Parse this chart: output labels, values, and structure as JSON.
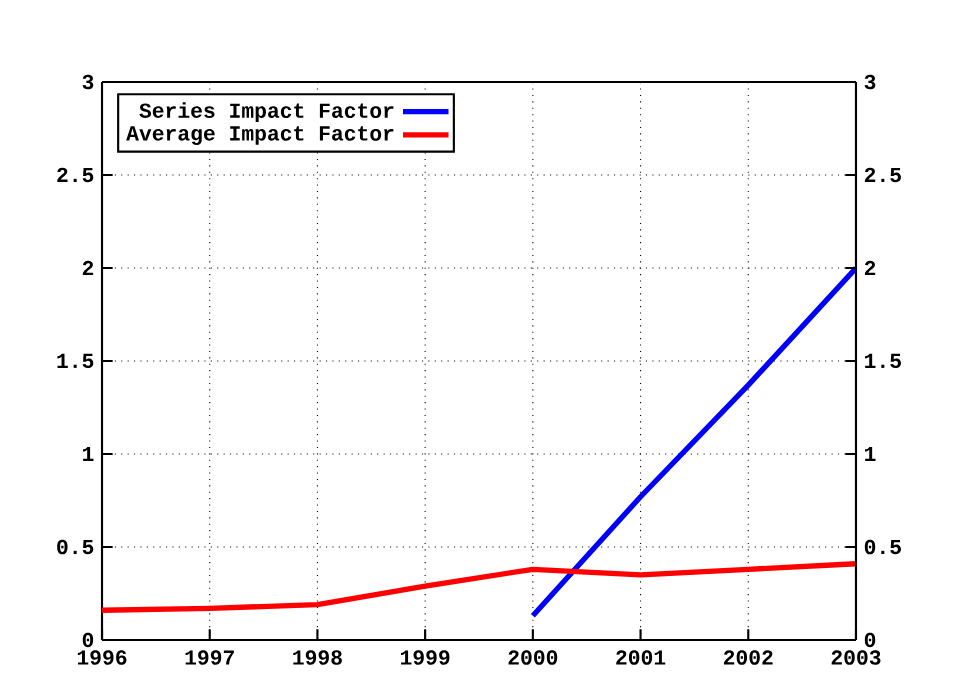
{
  "chart_data": {
    "type": "line",
    "x": [
      1996,
      1997,
      1998,
      1999,
      2000,
      2001,
      2002,
      2003
    ],
    "series": [
      {
        "name": "Series Impact Factor",
        "color": "#0000ff",
        "values": [
          null,
          null,
          null,
          null,
          0.13,
          0.77,
          1.37,
          2.0
        ]
      },
      {
        "name": "Average Impact Factor",
        "color": "#ff0000",
        "values": [
          0.16,
          0.17,
          0.19,
          0.29,
          0.38,
          0.35,
          0.38,
          0.41
        ]
      }
    ],
    "xlim": [
      1996,
      2003
    ],
    "xticks": [
      1996,
      1997,
      1998,
      1999,
      2000,
      2001,
      2002,
      2003
    ],
    "ylim": [
      0,
      3
    ],
    "yticks": [
      0,
      0.5,
      1,
      1.5,
      2,
      2.5,
      3
    ],
    "y2lim": [
      0,
      3
    ],
    "y2ticks": [
      0,
      0.5,
      1,
      1.5,
      2,
      2.5,
      3
    ],
    "grid": true,
    "legend": "top left",
    "marker": "none",
    "line_style": "solid"
  }
}
